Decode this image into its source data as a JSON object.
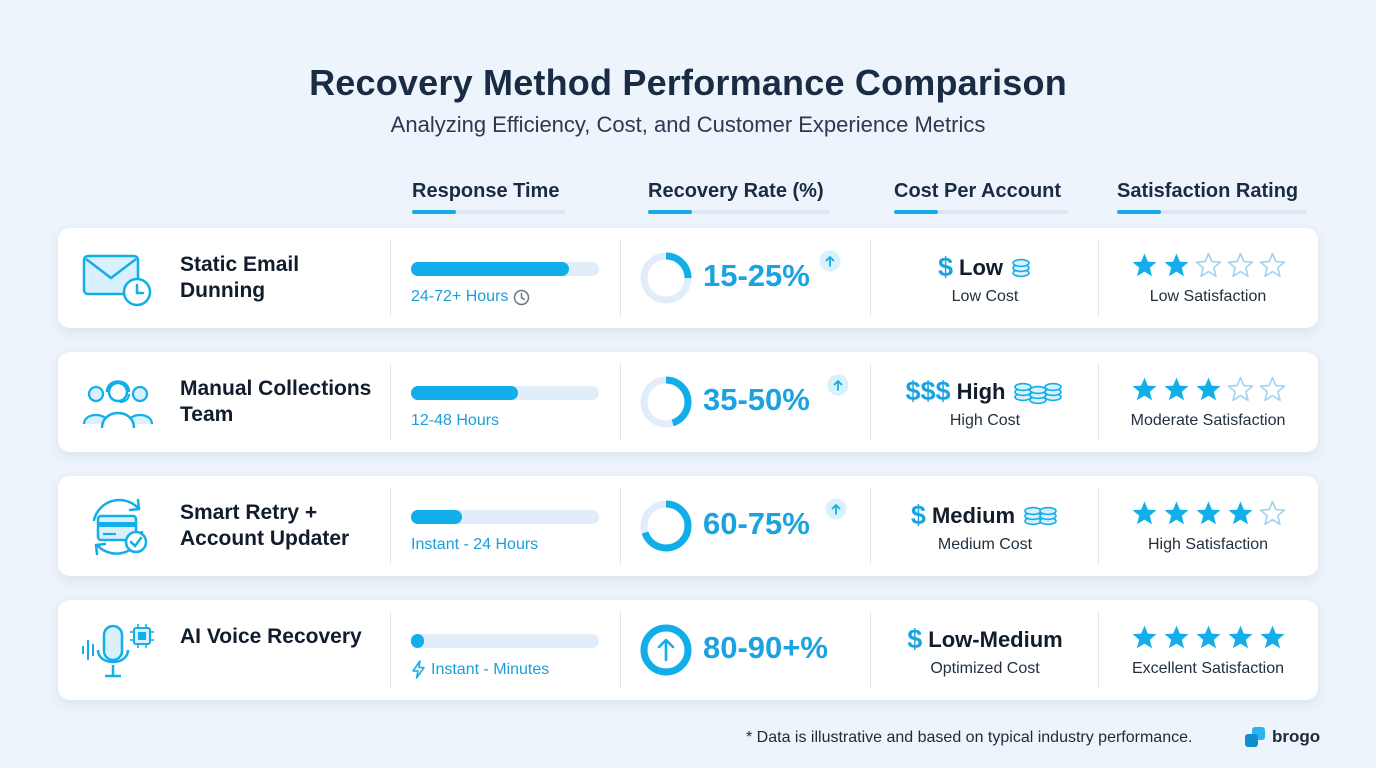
{
  "header": {
    "title": "Recovery Method Performance Comparison",
    "subtitle": "Analyzing Efficiency, Cost, and Customer Experience Metrics"
  },
  "columns": {
    "response_time": "Response Time",
    "recovery_rate": "Recovery Rate (%)",
    "cost_per_account": "Cost Per Account",
    "satisfaction": "Satisfaction Rating"
  },
  "colors": {
    "accent": "#12aeea",
    "track": "#e1eef9",
    "text": "#1a2b44"
  },
  "rows": [
    {
      "name": "Static Email Dunning",
      "icon": "email-clock-icon",
      "response_fill": 0.84,
      "response_label": "24-72+ Hours",
      "response_icon": "clock-icon",
      "recovery_ring_fraction": 0.25,
      "recovery_rate": "15-25%",
      "cost_symbol": "$",
      "cost_level": "Low",
      "cost_coins": 1,
      "cost_label": "Low Cost",
      "stars": 2,
      "satisfaction_label": "Low Satisfaction"
    },
    {
      "name": "Manual Collections Team",
      "icon": "support-team-icon",
      "response_fill": 0.57,
      "response_label": "12-48 Hours",
      "response_icon": "",
      "recovery_ring_fraction": 0.45,
      "recovery_rate": "35-50%",
      "cost_symbol": "$$$",
      "cost_level": "High",
      "cost_coins": 3,
      "cost_label": "High Cost",
      "stars": 3,
      "satisfaction_label": "Moderate Satisfaction"
    },
    {
      "name": "Smart Retry + Account Updater",
      "icon": "card-refresh-icon",
      "response_fill": 0.27,
      "response_label": "Instant - 24 Hours",
      "response_icon": "",
      "recovery_ring_fraction": 0.7,
      "recovery_rate": "60-75%",
      "cost_symbol": "$",
      "cost_level": "Medium",
      "cost_coins": 2,
      "cost_label": "Medium Cost",
      "stars": 4,
      "satisfaction_label": "High Satisfaction"
    },
    {
      "name": "AI Voice Recovery",
      "icon": "ai-microphone-icon",
      "response_fill": 0.06,
      "response_label": "Instant - Minutes",
      "response_icon": "lightning-icon",
      "recovery_ring_fraction": 1.0,
      "recovery_rate": "80-90+%",
      "cost_symbol": "$",
      "cost_level": "Low-Medium",
      "cost_coins": 0,
      "cost_label": "Optimized Cost",
      "stars": 5,
      "satisfaction_label": "Excellent Satisfaction"
    }
  ],
  "footer": {
    "note": "* Data is illustrative and based on typical industry performance.",
    "brand": "brogo"
  }
}
